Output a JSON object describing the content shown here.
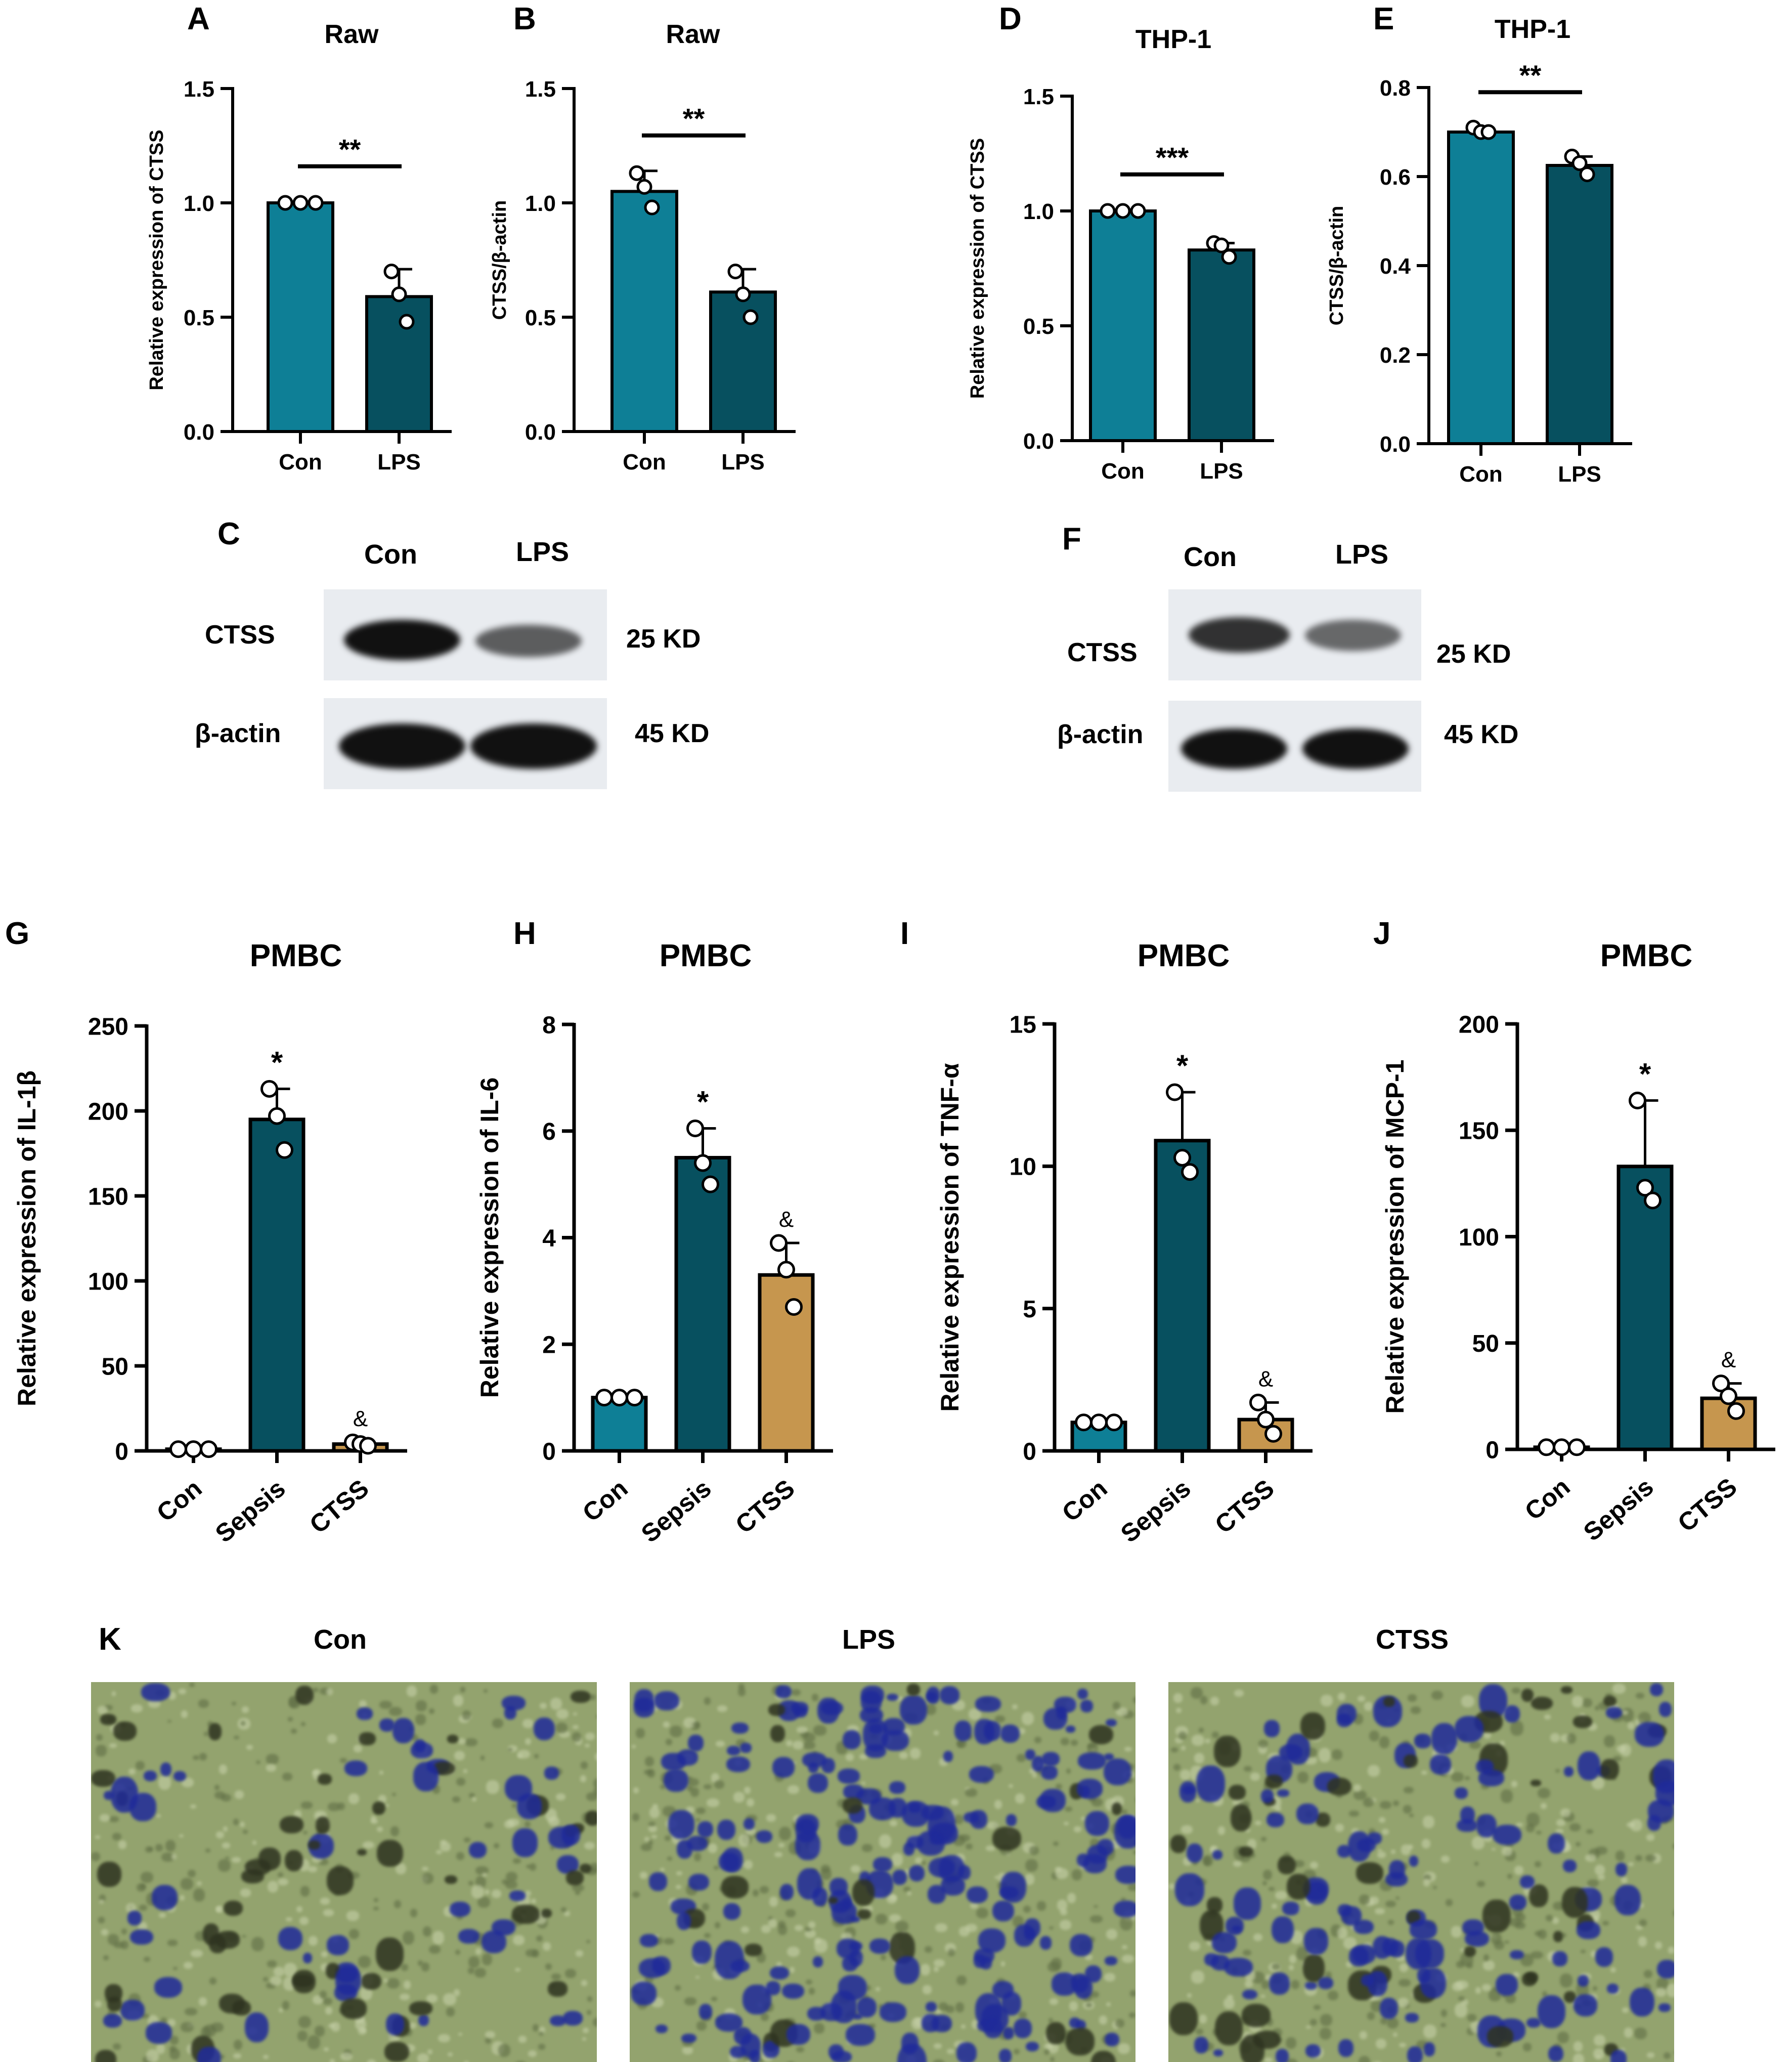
{
  "colors": {
    "con": "#0e7f96",
    "sepsis": "#07505f",
    "ctss": "#c6964e",
    "micro_bg": "#93a36e",
    "micro_stain": "#1f2a9a"
  },
  "panels": {
    "A": "A",
    "B": "B",
    "C": "C",
    "D": "D",
    "E": "E",
    "F": "F",
    "G": "G",
    "H": "H",
    "I": "I",
    "J": "J",
    "K": "K"
  },
  "chart_data": [
    {
      "id": "A",
      "type": "bar",
      "title": "Raw",
      "xlabel": "",
      "ylabel": "Relative expression of CTSS",
      "categories": [
        "Con",
        "LPS"
      ],
      "values": [
        1.0,
        0.59
      ],
      "errors": [
        0.005,
        0.12
      ],
      "points": [
        [
          1.0,
          1.0,
          1.0
        ],
        [
          0.7,
          0.6,
          0.48
        ]
      ],
      "ylim": [
        0,
        1.5
      ],
      "ticks": [
        0.0,
        0.5,
        1.0,
        1.5
      ],
      "tick_labels": [
        "0.0",
        "0.5",
        "1.0",
        "1.5"
      ],
      "significance": "**",
      "marker_above": [
        "",
        ""
      ]
    },
    {
      "id": "B",
      "type": "bar",
      "title": "Raw",
      "xlabel": "",
      "ylabel": "CTSS/β-actin",
      "categories": [
        "Con",
        "LPS"
      ],
      "values": [
        1.05,
        0.61
      ],
      "errors": [
        0.09,
        0.1
      ],
      "points": [
        [
          1.13,
          1.07,
          0.98
        ],
        [
          0.7,
          0.6,
          0.5
        ]
      ],
      "ylim": [
        0,
        1.5
      ],
      "ticks": [
        0.0,
        0.5,
        1.0,
        1.5
      ],
      "tick_labels": [
        "0.0",
        "0.5",
        "1.0",
        "1.5"
      ],
      "significance": "**",
      "marker_above": [
        "",
        ""
      ]
    },
    {
      "id": "D",
      "type": "bar",
      "title": "THP-1",
      "xlabel": "",
      "ylabel": "Relative expression of CTSS",
      "categories": [
        "Con",
        "LPS"
      ],
      "values": [
        1.0,
        0.83
      ],
      "errors": [
        0.005,
        0.03
      ],
      "points": [
        [
          1.0,
          1.0,
          1.0
        ],
        [
          0.86,
          0.85,
          0.8
        ]
      ],
      "ylim": [
        0,
        1.5
      ],
      "ticks": [
        0.0,
        0.5,
        1.0,
        1.5
      ],
      "tick_labels": [
        "0.0",
        "0.5",
        "1.0",
        "1.5"
      ],
      "significance": "***",
      "marker_above": [
        "",
        ""
      ]
    },
    {
      "id": "E",
      "type": "bar",
      "title": "THP-1",
      "xlabel": "",
      "ylabel": "CTSS/β-actin",
      "categories": [
        "Con",
        "LPS"
      ],
      "values": [
        0.7,
        0.625
      ],
      "errors": [
        0.008,
        0.02
      ],
      "points": [
        [
          0.71,
          0.7,
          0.7
        ],
        [
          0.645,
          0.63,
          0.605
        ]
      ],
      "ylim": [
        0,
        0.8
      ],
      "ticks": [
        0.0,
        0.2,
        0.4,
        0.6,
        0.8
      ],
      "tick_labels": [
        "0.0",
        "0.2",
        "0.4",
        "0.6",
        "0.8"
      ],
      "significance": "**",
      "marker_above": [
        "",
        ""
      ]
    },
    {
      "id": "G",
      "type": "bar",
      "title": "PMBC",
      "xlabel": "",
      "ylabel": "Relative expression of IL-1β",
      "categories": [
        "Con",
        "Sepsis",
        "CTSS"
      ],
      "values": [
        1,
        195,
        4
      ],
      "errors": [
        0,
        18,
        1
      ],
      "points": [
        [
          1,
          1,
          1
        ],
        [
          213,
          197,
          177
        ],
        [
          5,
          4,
          3
        ]
      ],
      "ylim": [
        0,
        250
      ],
      "ticks": [
        0,
        50,
        100,
        150,
        200,
        250
      ],
      "tick_labels": [
        "0",
        "50",
        "100",
        "150",
        "200",
        "250"
      ],
      "significance": "",
      "marker_above": [
        "",
        "*",
        "&"
      ]
    },
    {
      "id": "H",
      "type": "bar",
      "title": "PMBC",
      "xlabel": "",
      "ylabel": "Relative expression of IL-6",
      "categories": [
        "Con",
        "Sepsis",
        "CTSS"
      ],
      "values": [
        1,
        5.5,
        3.3
      ],
      "errors": [
        0,
        0.55,
        0.6
      ],
      "points": [
        [
          1,
          1,
          1
        ],
        [
          6.05,
          5.4,
          5.0
        ],
        [
          3.9,
          3.4,
          2.7
        ]
      ],
      "ylim": [
        0,
        8
      ],
      "ticks": [
        0,
        2,
        4,
        6,
        8
      ],
      "tick_labels": [
        "0",
        "2",
        "4",
        "6",
        "8"
      ],
      "significance": "",
      "marker_above": [
        "",
        "*",
        "&"
      ]
    },
    {
      "id": "I",
      "type": "bar",
      "title": "PMBC",
      "xlabel": "",
      "ylabel": "Relative expression of TNF-α",
      "categories": [
        "Con",
        "Sepsis",
        "CTSS"
      ],
      "values": [
        1,
        10.9,
        1.1
      ],
      "errors": [
        0,
        1.7,
        0.6
      ],
      "points": [
        [
          1,
          1,
          1
        ],
        [
          12.6,
          10.3,
          9.8
        ],
        [
          1.7,
          1.1,
          0.6
        ]
      ],
      "ylim": [
        0,
        15
      ],
      "ticks": [
        0,
        5,
        10,
        15
      ],
      "tick_labels": [
        "0",
        "5",
        "10",
        "15"
      ],
      "significance": "",
      "marker_above": [
        "",
        "*",
        "&"
      ]
    },
    {
      "id": "J",
      "type": "bar",
      "title": "PMBC",
      "xlabel": "",
      "ylabel": "Relative expression of MCP-1",
      "categories": [
        "Con",
        "Sepsis",
        "CTSS"
      ],
      "values": [
        1,
        133,
        24
      ],
      "errors": [
        0,
        31,
        7
      ],
      "points": [
        [
          1,
          1,
          1
        ],
        [
          164,
          123,
          117
        ],
        [
          31,
          25,
          18
        ]
      ],
      "ylim": [
        0,
        200
      ],
      "ticks": [
        0,
        50,
        100,
        150,
        200
      ],
      "tick_labels": [
        "0",
        "50",
        "100",
        "150",
        "200"
      ],
      "significance": "",
      "marker_above": [
        "",
        "*",
        "&"
      ]
    }
  ],
  "blots": [
    {
      "id": "C",
      "lanes": [
        "Con",
        "LPS"
      ],
      "rows": [
        {
          "protein": "CTSS",
          "size": "25 KD",
          "intensity": [
            1.0,
            0.6
          ]
        },
        {
          "protein": "β-actin",
          "size": "45 KD",
          "intensity": [
            1.0,
            1.0
          ]
        }
      ]
    },
    {
      "id": "F",
      "lanes": [
        "Con",
        "LPS"
      ],
      "rows": [
        {
          "protein": "CTSS",
          "size": "25 KD",
          "intensity": [
            0.85,
            0.6
          ]
        },
        {
          "protein": "β-actin",
          "size": "45 KD",
          "intensity": [
            1.0,
            1.0
          ]
        }
      ]
    }
  ],
  "micrographs": {
    "labels": [
      "Con",
      "LPS",
      "CTSS"
    ],
    "stain_density": [
      0.35,
      1.0,
      0.7
    ]
  }
}
